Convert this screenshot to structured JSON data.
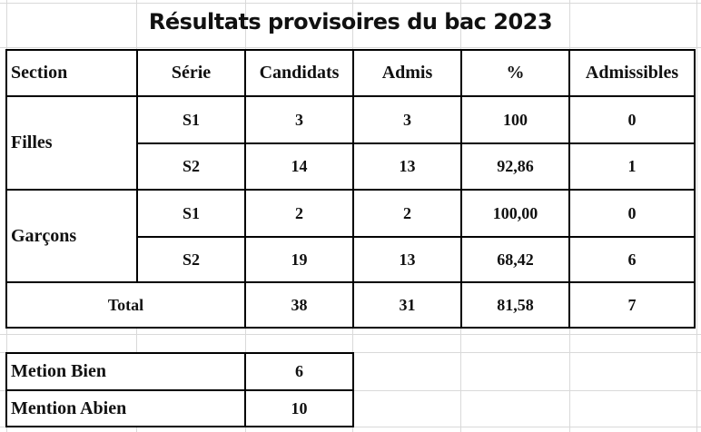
{
  "title": "Résultats provisoires du bac 2023",
  "headers": [
    "Section",
    "Série",
    "Candidats",
    "Admis",
    "%",
    "Admissibles"
  ],
  "sections": [
    {
      "name": "Filles",
      "rows": [
        {
          "serie": "S1",
          "candidats": "3",
          "admis": "3",
          "pct": "100",
          "admissibles": "0"
        },
        {
          "serie": "S2",
          "candidats": "14",
          "admis": "13",
          "pct": "92,86",
          "admissibles": "1"
        }
      ]
    },
    {
      "name": "Garçons",
      "rows": [
        {
          "serie": "S1",
          "candidats": "2",
          "admis": "2",
          "pct": "100,00",
          "admissibles": "0"
        },
        {
          "serie": "S2",
          "candidats": "19",
          "admis": "13",
          "pct": "68,42",
          "admissibles": "6"
        }
      ]
    }
  ],
  "total": {
    "label": "Total",
    "candidats": "38",
    "admis": "31",
    "pct": "81,58",
    "admissibles": "7"
  },
  "mentions": [
    {
      "label": "Metion Bien",
      "value": "6"
    },
    {
      "label": "Mention Abien",
      "value": "10"
    }
  ]
}
